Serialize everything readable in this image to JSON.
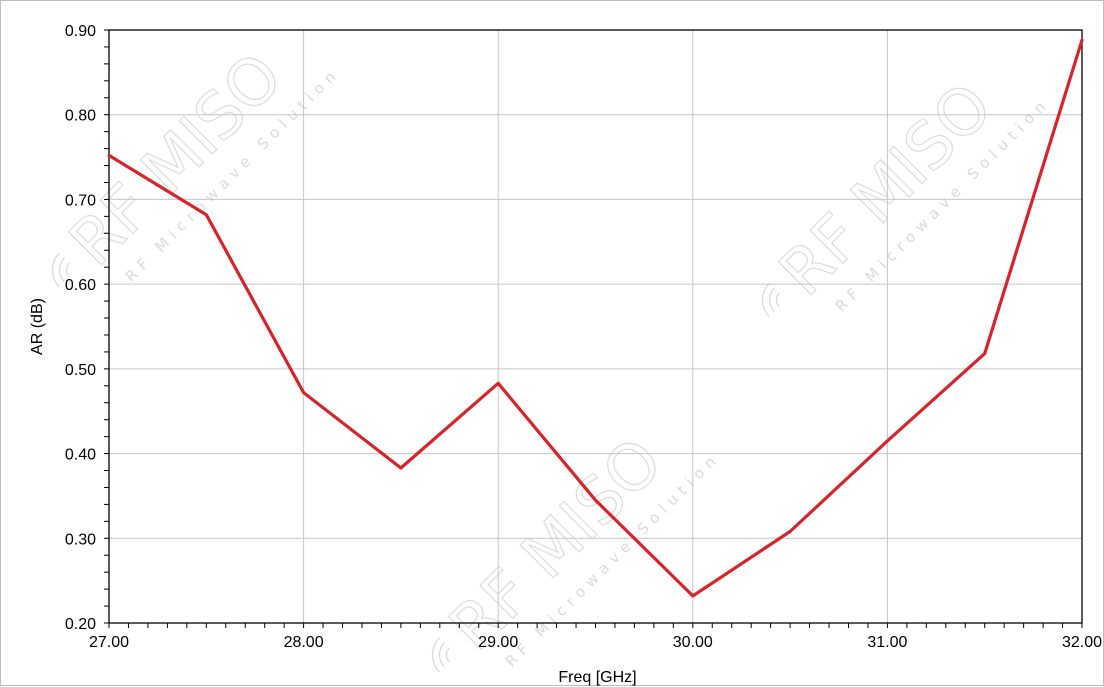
{
  "watermark": {
    "brand": "RF MISO",
    "tagline": "RF Microwave Solution"
  },
  "chart_data": {
    "type": "line",
    "title": "",
    "xlabel": "Freq [GHz]",
    "ylabel": "AR (dB)",
    "xlim": [
      27.0,
      32.0
    ],
    "ylim": [
      0.2,
      0.9
    ],
    "xticks": [
      "27.00",
      "28.00",
      "29.00",
      "30.00",
      "31.00",
      "32.00"
    ],
    "yticks": [
      "0.20",
      "0.30",
      "0.40",
      "0.50",
      "0.60",
      "0.70",
      "0.80",
      "0.90"
    ],
    "grid": true,
    "series": [
      {
        "color": "#d8232a",
        "x": [
          27.0,
          27.5,
          28.0,
          28.5,
          29.0,
          29.5,
          30.0,
          30.5,
          31.0,
          31.5,
          32.0
        ],
        "y": [
          0.752,
          0.682,
          0.472,
          0.383,
          0.483,
          0.345,
          0.232,
          0.308,
          0.415,
          0.518,
          0.888
        ]
      }
    ]
  }
}
